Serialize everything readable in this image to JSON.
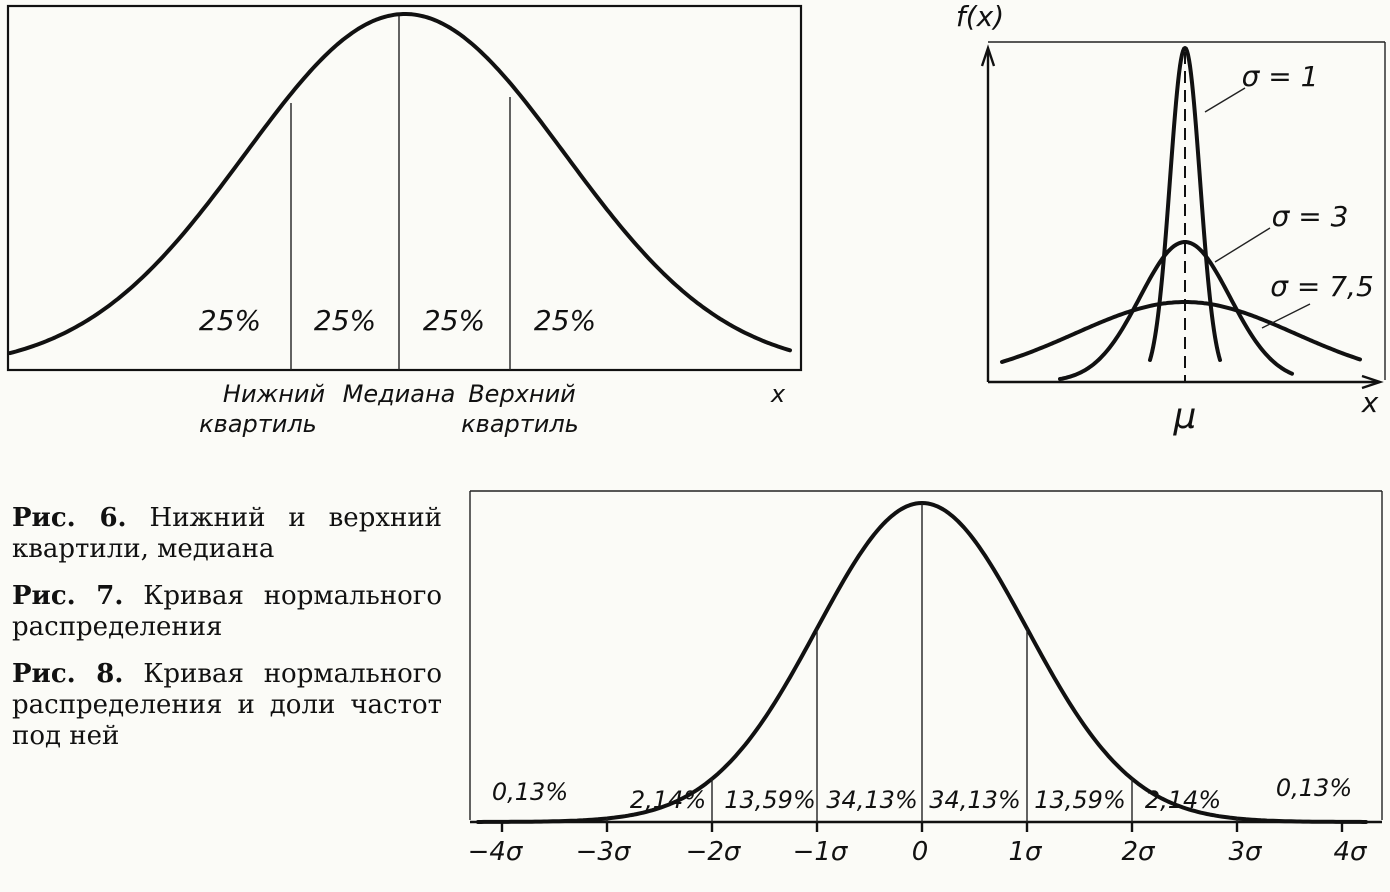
{
  "fig6": {
    "percents": [
      "25%",
      "25%",
      "25%",
      "25%"
    ],
    "x_label": "x",
    "lower_quartile": [
      "Нижний",
      "квартиль"
    ],
    "median": "Медиана",
    "upper_quartile": [
      "Верхний",
      "квартиль"
    ]
  },
  "fig7": {
    "y_label": "f(x)",
    "x_label": "x",
    "mu_label": "μ",
    "sigma_labels": [
      "σ = 1",
      "σ = 3",
      "σ = 7,5"
    ]
  },
  "fig8": {
    "percents": [
      "0,13%",
      "2,14%",
      "13,59%",
      "34,13%",
      "34,13%",
      "13,59%",
      "2,14%",
      "0,13%"
    ],
    "ticks": [
      "−4σ",
      "−3σ",
      "−2σ",
      "−1σ",
      "0",
      "1σ",
      "2σ",
      "3σ",
      "4σ"
    ]
  },
  "captions": [
    {
      "num": "Рис. 6.",
      "text": "Нижний и верхний квартили, медиана"
    },
    {
      "num": "Рис. 7.",
      "text": "Кривая нормального распределения"
    },
    {
      "num": "Рис. 8.",
      "text": "Кривая нормального распределения и доли частот под ней"
    }
  ]
}
